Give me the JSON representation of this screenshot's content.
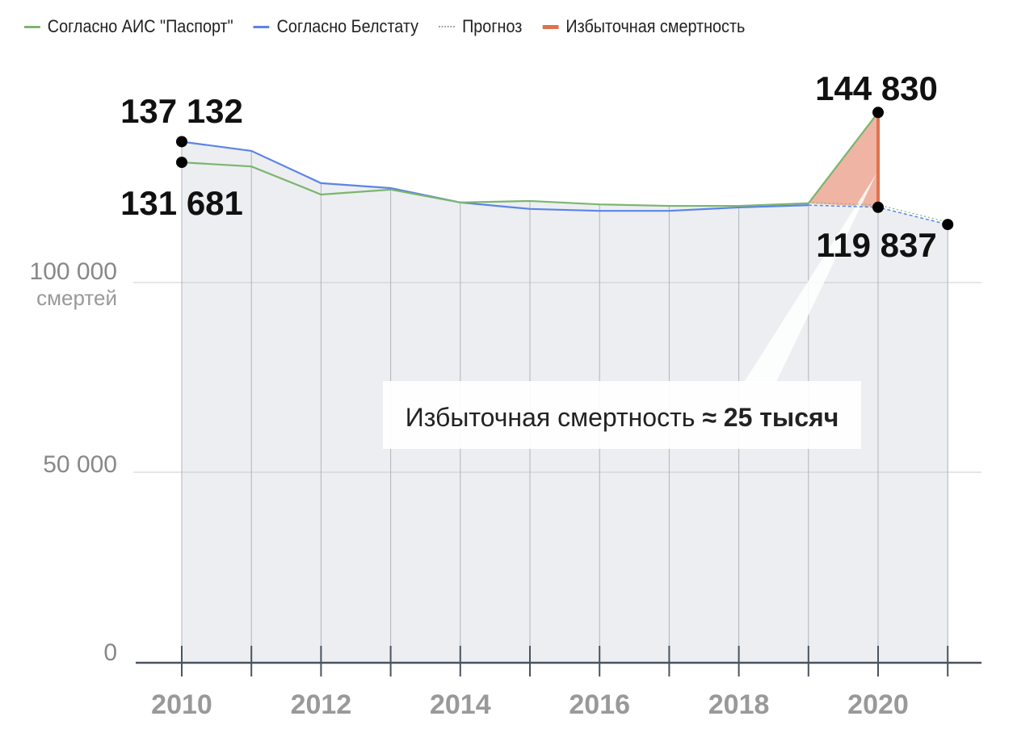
{
  "chart_data": {
    "type": "line",
    "title": "",
    "xlabel": "",
    "ylabel": "смертей",
    "x": [
      2010,
      2011,
      2012,
      2013,
      2014,
      2015,
      2016,
      2017,
      2018,
      2019,
      2020,
      2021
    ],
    "x_tick_labels": [
      "2010",
      "2012",
      "2014",
      "2016",
      "2018",
      "2020"
    ],
    "y_ticks": [
      {
        "value": 0,
        "label": "0"
      },
      {
        "value": 50000,
        "label": "50 000"
      },
      {
        "value": 100000,
        "label": "100 000"
      }
    ],
    "y_unit_label": "смертей",
    "ylim": [
      0,
      150000
    ],
    "grid": true,
    "legend_position": "top",
    "series": [
      {
        "name": "Согласно АИС \"Паспорт\"",
        "color": "#7cb56e",
        "x": [
          2010,
          2011,
          2012,
          2013,
          2014,
          2015,
          2016,
          2017,
          2018,
          2019,
          2020
        ],
        "values": [
          131681,
          130600,
          123200,
          124500,
          121100,
          121500,
          120600,
          120200,
          120200,
          120900,
          144830
        ]
      },
      {
        "name": "Согласно Белстату",
        "color": "#5b84e8",
        "x": [
          2010,
          2011,
          2012,
          2013,
          2014,
          2015,
          2016,
          2017,
          2018,
          2019
        ],
        "values": [
          137132,
          134700,
          126200,
          124900,
          121100,
          119400,
          118900,
          118900,
          119800,
          120400
        ]
      },
      {
        "name": "Прогноз",
        "color": "#8899bb",
        "style": "dashed",
        "x": [
          2019,
          2020,
          2021
        ],
        "values": [
          120400,
          119837,
          115300
        ]
      },
      {
        "name": "Избыточная смертность",
        "color": "#e0724f",
        "fill": "#efb4a3"
      }
    ],
    "annotations": [
      {
        "label": "137 132",
        "x": 2010,
        "value": 137132
      },
      {
        "label": "131 681",
        "x": 2010,
        "value": 131681
      },
      {
        "label": "144 830",
        "x": 2020,
        "value": 144830
      },
      {
        "label": "119 837",
        "x": 2020,
        "value": 119837
      }
    ],
    "callout": {
      "text": "Избыточная смертность ",
      "approx": "≈ ",
      "bold": "25 тысяч"
    }
  }
}
